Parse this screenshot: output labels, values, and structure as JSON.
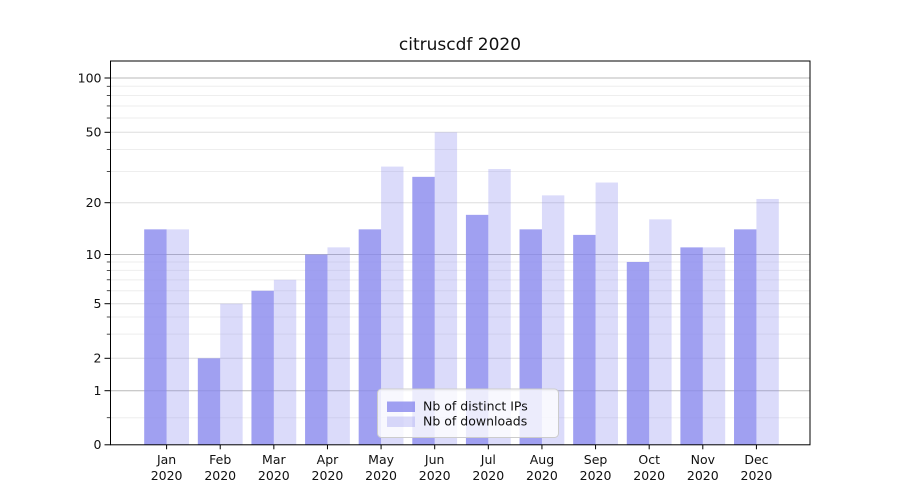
{
  "title": "citruscdf 2020",
  "chart_data": {
    "type": "bar",
    "title": "citruscdf 2020",
    "categories": [
      "Jan",
      "Feb",
      "Mar",
      "Apr",
      "May",
      "Jun",
      "Jul",
      "Aug",
      "Sep",
      "Oct",
      "Nov",
      "Dec"
    ],
    "category_year": "2020",
    "series": [
      {
        "name": "Nb of distinct IPs",
        "values": [
          14,
          2,
          6,
          10,
          14,
          28,
          17,
          14,
          13,
          9,
          11,
          14
        ],
        "color": "rgba(136,136,238,0.8)"
      },
      {
        "name": "Nb of downloads",
        "values": [
          14,
          5,
          7,
          11,
          32,
          50,
          31,
          22,
          26,
          16,
          11,
          21
        ],
        "color": "rgba(136,136,238,0.3)"
      }
    ],
    "yscale": "symlog",
    "yticks": [
      0,
      1,
      2,
      5,
      10,
      20,
      50,
      100
    ],
    "ylim": [
      0,
      140
    ],
    "xlabel": "",
    "ylabel": "",
    "grid": true,
    "legend_position": "lower center"
  },
  "colors": {
    "bar_base": "#8888ee",
    "grid_major_power10": "#b8b8b8",
    "grid_major_other": "#dddddd",
    "grid_minor": "#eeeeee",
    "spine": "#000000",
    "legend_border": "#cccccc",
    "legend_background": "rgba(255,255,255,0.8)",
    "text": "#111111"
  }
}
